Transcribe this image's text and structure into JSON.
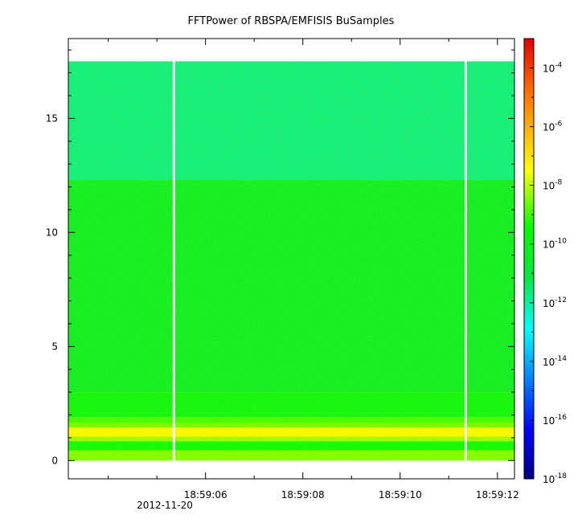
{
  "chart_data": {
    "type": "heatmap",
    "title": "FFTPower of RBSPA/EMFISIS  BuSamples",
    "xlabel": "",
    "ylabel": "",
    "x_ticks": [
      {
        "value": 6,
        "label": "18:59:06"
      },
      {
        "value": 8,
        "label": "18:59:08"
      },
      {
        "value": 10,
        "label": "18:59:10"
      },
      {
        "value": 12,
        "label": "18:59:12"
      }
    ],
    "x_date_label": "2012-11-20",
    "x_range": [
      3.18,
      12.35
    ],
    "y_ticks": [
      0,
      5,
      10,
      15
    ],
    "y_range": [
      -0.8,
      18.5
    ],
    "data_y_range": [
      0,
      17.5
    ],
    "colorbar": {
      "scale": "log",
      "range": [
        "1e-18",
        "1e-3"
      ],
      "colormap": "rainbow",
      "ticks": [
        {
          "base": "10",
          "exp": "-4"
        },
        {
          "base": "10",
          "exp": "-6"
        },
        {
          "base": "10",
          "exp": "-8"
        },
        {
          "base": "10",
          "exp": "-10"
        },
        {
          "base": "10",
          "exp": "-12"
        },
        {
          "base": "10",
          "exp": "-14"
        },
        {
          "base": "10",
          "exp": "-16"
        },
        {
          "base": "10",
          "exp": "-18"
        }
      ]
    },
    "bands": [
      {
        "y": [
          0,
          0.45
        ],
        "log10_power": -8.5
      },
      {
        "y": [
          0.45,
          0.85
        ],
        "log10_power": -9.6
      },
      {
        "y": [
          0.85,
          1.05
        ],
        "log10_power": -8.3
      },
      {
        "y": [
          1.05,
          1.45
        ],
        "log10_power": -7.4
      },
      {
        "y": [
          1.45,
          1.65
        ],
        "log10_power": -8.6
      },
      {
        "y": [
          1.65,
          1.9
        ],
        "log10_power": -9.0
      },
      {
        "y": [
          1.9,
          3.0
        ],
        "log10_power": -9.9
      },
      {
        "y": [
          3.0,
          12.3
        ],
        "log10_power": -10.5
      },
      {
        "y": [
          12.3,
          17.5
        ],
        "log10_power": -11.8
      }
    ],
    "gaps_x": [
      5.35,
      11.35
    ],
    "colors": {
      "frame": "#000000",
      "gap": "#ffffff"
    }
  }
}
